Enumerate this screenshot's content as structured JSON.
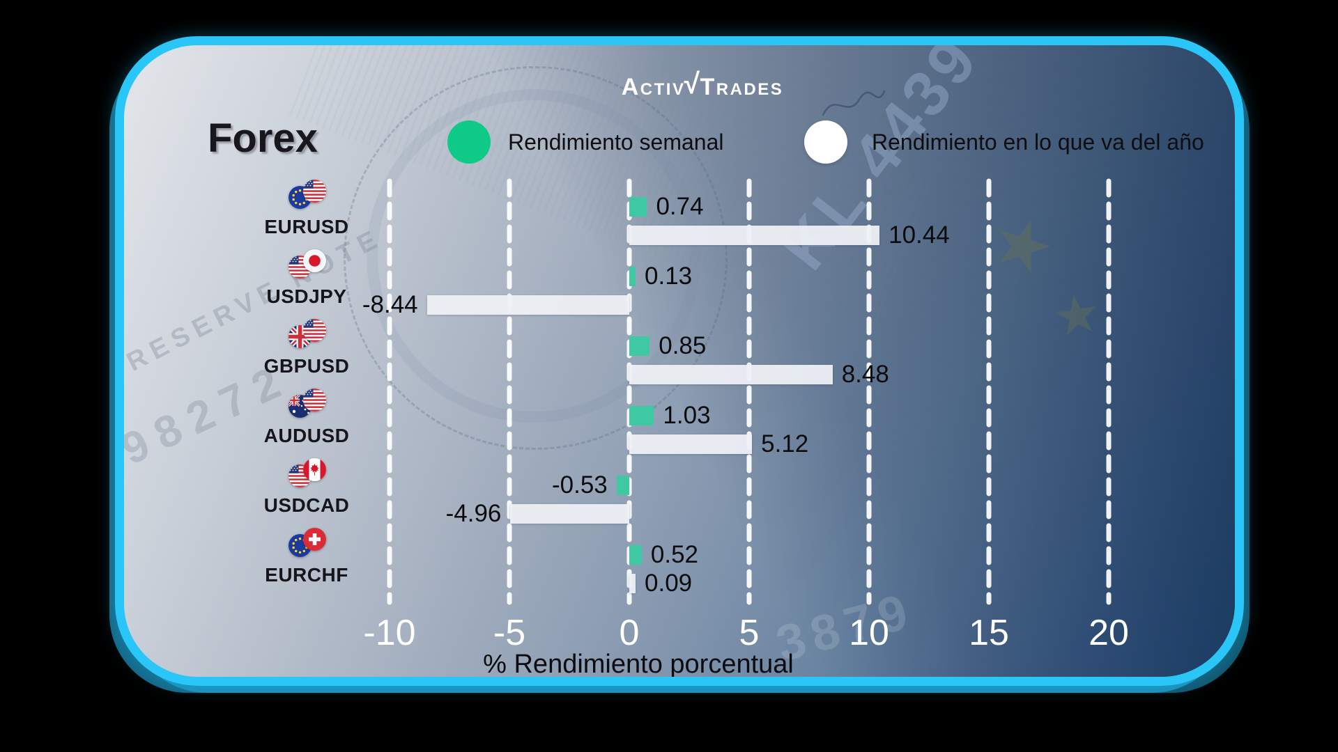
{
  "brand": {
    "name": "ActivTrades",
    "part1": "Activ",
    "separator": "√",
    "part2": "Trades"
  },
  "title": "Forex",
  "legend": {
    "weekly": {
      "label": "Rendimiento semanal",
      "color": "#0fc987"
    },
    "ytd": {
      "label": "Rendimiento en lo que va del año",
      "color": "#ffffff"
    }
  },
  "axis": {
    "xlabel": "% Rendimiento porcentual"
  },
  "watermarks": {
    "serial": "KL 4439",
    "note": "RESERVE NOTE",
    "digits_left": "98272",
    "digits_right": "3879",
    "star": "★"
  },
  "chart_data": {
    "type": "bar",
    "orientation": "horizontal",
    "title": "Forex",
    "categories": [
      "EURUSD",
      "USDJPY",
      "GBPUSD",
      "AUDUSD",
      "USDCAD",
      "EURCHF"
    ],
    "flag_pairs": [
      [
        "EU",
        "US"
      ],
      [
        "US",
        "JP"
      ],
      [
        "GB",
        "US"
      ],
      [
        "AU",
        "US"
      ],
      [
        "US",
        "CA"
      ],
      [
        "EU",
        "CH"
      ]
    ],
    "series": [
      {
        "name": "Rendimiento semanal",
        "color": "#3ec9a2",
        "values": [
          0.74,
          0.13,
          0.85,
          1.03,
          -0.53,
          0.52
        ]
      },
      {
        "name": "Rendimiento en lo que va del año",
        "color": "#edf0f4",
        "values": [
          10.44,
          -8.44,
          8.48,
          5.12,
          -4.96,
          0.09
        ]
      }
    ],
    "x_ticks": [
      -10,
      -5,
      0,
      5,
      10,
      15,
      20
    ],
    "xlim": [
      -12,
      22
    ],
    "xlabel": "% Rendimiento porcentual",
    "grid": "vertical-dashed-white",
    "legend_position": "top"
  }
}
